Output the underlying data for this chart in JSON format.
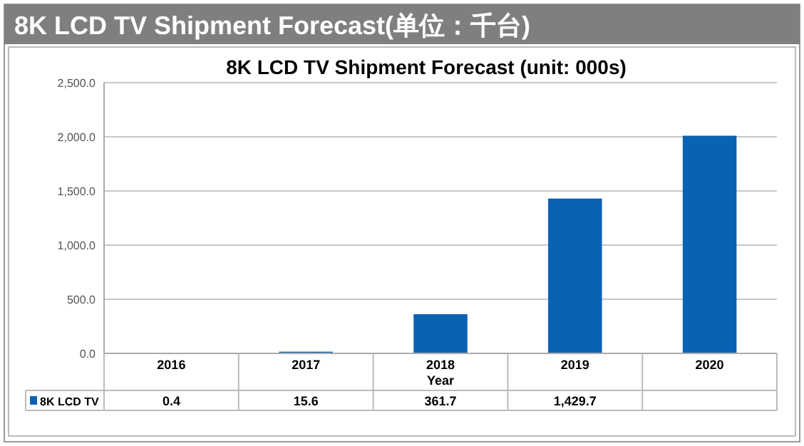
{
  "chart_data": {
    "type": "bar",
    "title": "8K LCD TV Shipment Forecast(单位：千台)",
    "subtitle": "8K LCD TV Shipment Forecast (unit: 000s)",
    "xlabel": "Year",
    "categories": [
      "2016",
      "2017",
      "2018",
      "2019",
      "2020"
    ],
    "series": [
      {
        "name": "8K LCD TV",
        "color": "#0b62b4",
        "values": [
          0.4,
          15.6,
          361.7,
          1429.7,
          2010
        ],
        "value_labels": [
          "0.4",
          "15.6",
          "361.7",
          "1,429.7",
          null
        ]
      }
    ],
    "ylim": [
      0,
      2500
    ],
    "yticks": [
      {
        "value": 0,
        "label": "0.0"
      },
      {
        "value": 500,
        "label": "500.0"
      },
      {
        "value": 1000,
        "label": "1,000.0"
      },
      {
        "value": 1500,
        "label": "1,500.0"
      },
      {
        "value": 2000,
        "label": "2,000.0"
      },
      {
        "value": 2500,
        "label": "2,500.0"
      }
    ],
    "grid": "y",
    "legend": "bottom"
  }
}
